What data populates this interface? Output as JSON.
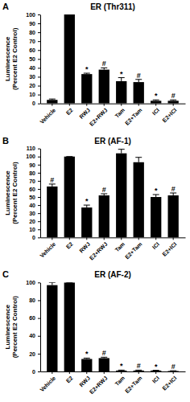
{
  "chart_data": [
    {
      "type": "bar",
      "panel_label": "A",
      "title": "ER (Thr311)",
      "y_label": [
        "Luminescence",
        "(Percent E2 Control)"
      ],
      "categories": [
        "Vehicle",
        "E2",
        "RWJ",
        "E2+RWJ",
        "Tam",
        "E2+Tam",
        "ICI",
        "E2+ICI"
      ],
      "values": [
        4,
        100,
        33,
        38,
        25,
        24,
        3,
        3
      ],
      "errors": [
        1,
        0,
        1,
        2,
        4,
        3,
        1,
        1
      ],
      "annotations": [
        null,
        null,
        "*",
        "#",
        "*",
        "#",
        "*",
        "#"
      ],
      "color": "#000000",
      "ylim": [
        0,
        100
      ],
      "yticks": [
        0,
        10,
        20,
        30,
        40,
        50,
        60,
        70,
        80,
        90,
        100
      ]
    },
    {
      "type": "bar",
      "panel_label": "B",
      "title": "ER (AF-1)",
      "y_label": [
        "Luminescence",
        "(Percent E2 Control)"
      ],
      "categories": [
        "Vehicle",
        "E2",
        "RWJ",
        "E2+RWJ",
        "Tam",
        "E2+Tam",
        "ICI",
        "E2+ICI"
      ],
      "values": [
        63,
        100,
        37,
        52,
        104,
        93,
        50,
        52
      ],
      "errors": [
        3,
        0,
        3,
        2,
        5,
        6,
        3,
        3
      ],
      "annotations": [
        "#",
        null,
        "*",
        "#",
        null,
        null,
        "*",
        "#"
      ],
      "color": "#000000",
      "ylim": [
        0,
        110
      ],
      "yticks": [
        0,
        10,
        20,
        30,
        40,
        50,
        60,
        70,
        80,
        90,
        100,
        110
      ]
    },
    {
      "type": "bar",
      "panel_label": "C",
      "title": "ER (AF-2)",
      "y_label": [
        "Luminescence",
        "(Percent E2 Control)"
      ],
      "categories": [
        "Vehicle",
        "E2",
        "RWJ",
        "E2+RWJ",
        "Tam",
        "E2+Tam",
        "ICI",
        "E2+ICI"
      ],
      "values": [
        97,
        100,
        14,
        15,
        1,
        1,
        1,
        0.5
      ],
      "errors": [
        3,
        0,
        1,
        1,
        0.5,
        0.5,
        0.3,
        0.3
      ],
      "annotations": [
        null,
        null,
        "*",
        "#",
        "*",
        "#",
        "*",
        "#"
      ],
      "color": "#000000",
      "ylim": [
        0,
        100
      ],
      "yticks": [
        0,
        20,
        40,
        60,
        80,
        100
      ]
    }
  ]
}
